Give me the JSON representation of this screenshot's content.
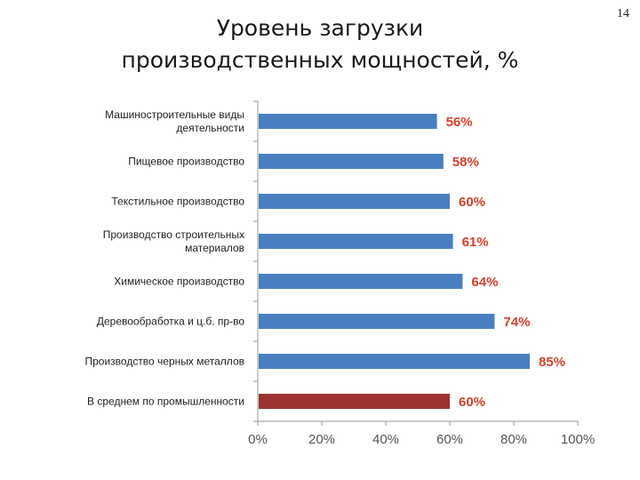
{
  "slide": {
    "title_line1": "Уровень загрузки",
    "title_line2": "производственных мощностей, %",
    "page_number": "14"
  },
  "chart_data": {
    "type": "bar",
    "orientation": "horizontal",
    "categories": [
      [
        "Машиностроительные виды",
        "деятельности"
      ],
      [
        "Пищевое производство"
      ],
      [
        "Текстильное производство"
      ],
      [
        "Производство строительных",
        "материалов"
      ],
      [
        "Химическое производство"
      ],
      [
        "Деревообработка и ц.б. пр-во"
      ],
      [
        "Производство черных металлов"
      ],
      [
        "В среднем по промышленности"
      ]
    ],
    "values": [
      56,
      58,
      60,
      61,
      64,
      74,
      85,
      60
    ],
    "value_labels": [
      "56%",
      "58%",
      "60%",
      "61%",
      "64%",
      "74%",
      "85%",
      "60%"
    ],
    "bar_colors": [
      "#4a7fc1",
      "#4a7fc1",
      "#4a7fc1",
      "#4a7fc1",
      "#4a7fc1",
      "#4a7fc1",
      "#4a7fc1",
      "#9e3232"
    ],
    "xlim": [
      0,
      100
    ],
    "xticks": [
      0,
      20,
      40,
      60,
      80,
      100
    ],
    "xtick_labels": [
      "0%",
      "20%",
      "40%",
      "60%",
      "80%",
      "100%"
    ],
    "grid": false,
    "legend": "none"
  }
}
